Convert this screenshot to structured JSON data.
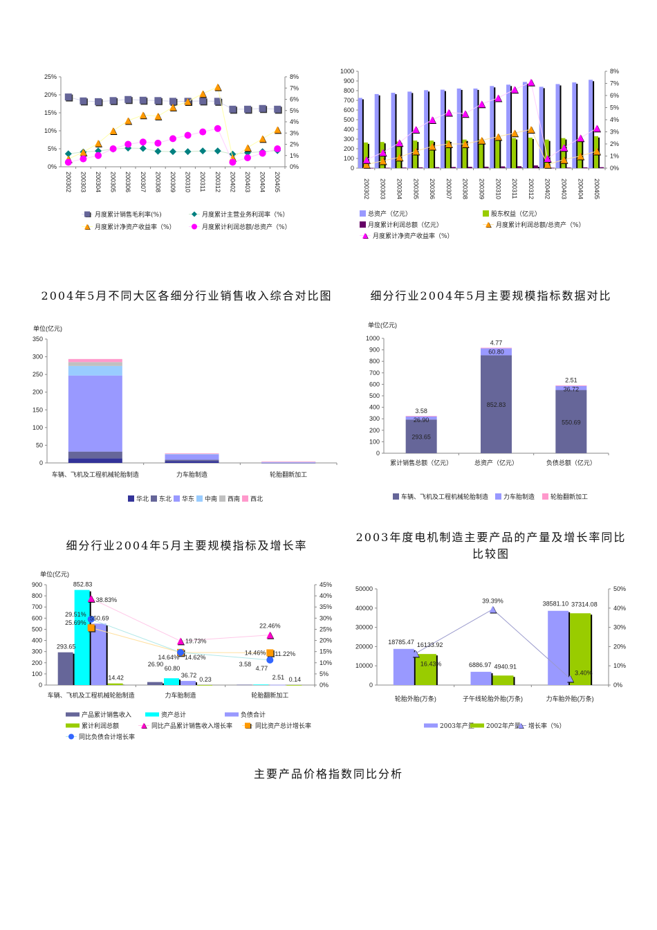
{
  "titles": {
    "t3": "2004年5月不同大区各细分行业销售收入综合对比图",
    "t4": "细分行业2004年5月主要规模指标数据对比",
    "t5": "细分行业2004年5月主要规模指标及增长率",
    "t6": "2003年度电机制造主要产品的产量及增长率同比比较图",
    "t7": "主要产品价格指数同比分析"
  },
  "chart_data": [
    {
      "type": "line",
      "categories": [
        "200302",
        "200303",
        "200304",
        "200305",
        "200306",
        "200307",
        "200308",
        "200309",
        "200310",
        "200311",
        "200312",
        "200402",
        "200403",
        "200404",
        "200405"
      ],
      "y_left": {
        "lim": [
          0,
          25
        ],
        "ticks": [
          "0%",
          "5%",
          "10%",
          "15%",
          "20%",
          "25%"
        ]
      },
      "y_right": {
        "lim": [
          0,
          8
        ],
        "ticks": [
          "0%",
          "1%",
          "2%",
          "3%",
          "4%",
          "5%",
          "6%",
          "7%",
          "8%"
        ]
      },
      "legend": "bottom",
      "series": [
        {
          "name": "月度累计销售毛利率(%)",
          "kind": "line",
          "axis": "left",
          "marker": "square",
          "color": "#666699",
          "line": "#d8d8ee",
          "values": [
            19.4,
            18.3,
            18.1,
            18.4,
            18.7,
            18.5,
            18.4,
            18.2,
            18.2,
            18.3,
            18.2,
            16.0,
            16.0,
            16.2,
            16.0
          ]
        },
        {
          "name": "月度累计主营业务利润率（%）",
          "kind": "line",
          "axis": "left",
          "marker": "diamond",
          "color": "#008080",
          "line": "#cde8cd",
          "values": [
            3.6,
            4.1,
            4.4,
            4.9,
            5.2,
            5.1,
            4.3,
            4.2,
            4.2,
            4.4,
            4.4,
            3.5,
            3.9,
            4.2,
            4.5
          ]
        },
        {
          "name": "月度累计净资产收益率（%）",
          "kind": "line",
          "axis": "right",
          "marker": "triangle",
          "color": "#ff9900",
          "line": "#ffffaa",
          "values": [
            0.7,
            1.3,
            2.1,
            3.2,
            4.1,
            4.6,
            4.5,
            5.3,
            5.8,
            6.5,
            7.1,
            0.8,
            1.7,
            2.5,
            3.3
          ]
        },
        {
          "name": "月度累计利润总额/总资产（%）",
          "kind": "line",
          "axis": "right",
          "marker": "circle",
          "color": "#ff00ff",
          "line": "#ffd0ff",
          "values": [
            0.4,
            0.7,
            1.0,
            1.6,
            2.0,
            2.2,
            2.1,
            2.5,
            2.8,
            3.1,
            3.4,
            0.4,
            0.8,
            1.2,
            1.6
          ]
        }
      ]
    },
    {
      "type": "bar",
      "categories": [
        "200302",
        "200303",
        "200304",
        "200305",
        "200306",
        "200307",
        "200308",
        "200309",
        "200310",
        "200311",
        "200312",
        "200402",
        "200403",
        "200404",
        "200405"
      ],
      "y_left": {
        "lim": [
          0,
          1000
        ],
        "ticks": [
          "0",
          "100",
          "200",
          "300",
          "400",
          "500",
          "600",
          "700",
          "800",
          "900",
          "1000"
        ]
      },
      "y_right": {
        "lim": [
          0,
          8
        ],
        "ticks": [
          "0%",
          "1%",
          "2%",
          "3%",
          "4%",
          "5%",
          "6%",
          "7%",
          "8%"
        ]
      },
      "legend": "bottom",
      "series": [
        {
          "name": "总资产（亿元）",
          "kind": "bar",
          "axis": "left",
          "color": "#9999ff",
          "values": [
            725,
            765,
            778,
            790,
            805,
            810,
            822,
            822,
            848,
            862,
            890,
            840,
            868,
            885,
            912
          ]
        },
        {
          "name": "股东权益（亿元）",
          "kind": "bar",
          "axis": "left",
          "color": "#99cc00",
          "values": [
            265,
            270,
            275,
            285,
            285,
            285,
            295,
            295,
            300,
            310,
            315,
            295,
            310,
            305,
            330
          ]
        },
        {
          "name": "月度累计利润总额（亿元）",
          "kind": "bar",
          "axis": "left",
          "color": "#660066",
          "values": [
            2,
            4,
            6,
            8,
            10,
            12,
            14,
            15,
            18,
            20,
            28,
            4,
            6,
            8,
            10
          ]
        },
        {
          "name": "月度累计利润总额/总资产（%）",
          "kind": "line",
          "axis": "right",
          "marker": "triangle",
          "color": "#ff9900",
          "line": "#ffe0a0",
          "values": [
            0.3,
            0.6,
            0.9,
            1.4,
            1.8,
            2.0,
            2.0,
            2.3,
            2.6,
            2.9,
            3.2,
            0.3,
            0.7,
            1.0,
            1.4
          ]
        },
        {
          "name": "月度累计净资产收益率（%）",
          "kind": "line",
          "axis": "right",
          "marker": "triangle",
          "color": "#ff00ff",
          "line": "#ffd0ff",
          "values": [
            0.7,
            1.3,
            2.1,
            3.2,
            4.0,
            4.6,
            4.5,
            5.3,
            5.8,
            6.5,
            7.1,
            0.8,
            1.7,
            2.5,
            3.3
          ]
        }
      ]
    },
    {
      "type": "bar",
      "stacked": true,
      "unit": "单位(亿元)",
      "categories": [
        "车辆、飞机及工程机械轮胎制造",
        "力车胎制造",
        "轮胎翻新加工"
      ],
      "y_left": {
        "lim": [
          0,
          350
        ],
        "ticks": [
          "0",
          "50",
          "100",
          "150",
          "200",
          "250",
          "300",
          "350"
        ]
      },
      "legend": "bottom",
      "series": [
        {
          "name": "华北",
          "kind": "bar",
          "axis": "left",
          "color": "#333399",
          "values": [
            13,
            5,
            0.3
          ]
        },
        {
          "name": "东北",
          "kind": "bar",
          "axis": "left",
          "color": "#666699",
          "values": [
            19,
            4,
            0.2
          ]
        },
        {
          "name": "华东",
          "kind": "bar",
          "axis": "left",
          "color": "#9999ff",
          "values": [
            215,
            15,
            1.0
          ]
        },
        {
          "name": "中南",
          "kind": "bar",
          "axis": "left",
          "color": "#99ccff",
          "values": [
            27,
            2,
            2.0
          ]
        },
        {
          "name": "西南",
          "kind": "bar",
          "axis": "left",
          "color": "#c0c0c0",
          "values": [
            11,
            0.5,
            0.05
          ]
        },
        {
          "name": "西北",
          "kind": "bar",
          "axis": "left",
          "color": "#ff99cc",
          "values": [
            8.6,
            0.4,
            0.03
          ]
        }
      ]
    },
    {
      "type": "bar",
      "stacked": true,
      "unit": "单位(亿元)",
      "categories": [
        "累计销售总额（亿元）",
        "总资产（亿元）",
        "负债总额（亿元）"
      ],
      "y_left": {
        "lim": [
          0,
          1000
        ],
        "ticks": [
          "0",
          "100",
          "200",
          "300",
          "400",
          "500",
          "600",
          "700",
          "800",
          "900",
          "1000"
        ]
      },
      "legend": "bottom",
      "series": [
        {
          "name": "车辆、飞机及工程机械轮胎制造",
          "kind": "bar",
          "axis": "left",
          "color": "#666699",
          "values": [
            293.65,
            852.83,
            550.69
          ],
          "labels": [
            "293.65",
            "852.83",
            "550.69"
          ]
        },
        {
          "name": "力车胎制造",
          "kind": "bar",
          "axis": "left",
          "color": "#9999ff",
          "values": [
            26.9,
            60.8,
            36.72
          ],
          "labels": [
            "26.90",
            "60.80",
            "36.72"
          ]
        },
        {
          "name": "轮胎翻新加工",
          "kind": "bar",
          "axis": "left",
          "color": "#ff99cc",
          "values": [
            3.58,
            4.77,
            2.51
          ],
          "labels": [
            "3.58",
            "4.77",
            "2.51"
          ]
        }
      ]
    },
    {
      "type": "bar",
      "unit": "单位(亿元)",
      "categories": [
        "车辆、飞机及工程机械轮胎制造",
        "力车胎制造",
        "轮胎翻新加工"
      ],
      "y_left": {
        "lim": [
          0,
          900
        ],
        "ticks": [
          "0",
          "100",
          "200",
          "300",
          "400",
          "500",
          "600",
          "700",
          "800",
          "900"
        ]
      },
      "y_right": {
        "lim": [
          0,
          45
        ],
        "ticks": [
          "0%",
          "5%",
          "10%",
          "15%",
          "20%",
          "25%",
          "30%",
          "35%",
          "40%",
          "45%"
        ]
      },
      "legend": "bottom",
      "series": [
        {
          "name": "产品累计销售收入",
          "kind": "bar",
          "axis": "left",
          "color": "#666699",
          "values": [
            293.65,
            26.9,
            3.58
          ],
          "labels": [
            "293.65",
            "26.90",
            "3.58"
          ]
        },
        {
          "name": "资产总计",
          "kind": "bar",
          "axis": "left",
          "color": "#00ffff",
          "values": [
            852.83,
            60.8,
            4.77
          ],
          "labels": [
            "852.83",
            "60.80",
            "4.77"
          ]
        },
        {
          "name": "负债合计",
          "kind": "bar",
          "axis": "left",
          "color": "#9999ff",
          "values": [
            550.69,
            36.72,
            2.51
          ],
          "labels": [
            "550.69",
            "36.72",
            "2.51"
          ]
        },
        {
          "name": "累计利润总额",
          "kind": "bar",
          "axis": "left",
          "color": "#99cc00",
          "values": [
            14.42,
            0.23,
            0.14
          ],
          "labels": [
            "14.42",
            "0.23",
            "0.14"
          ]
        },
        {
          "name": "同比产品累计销售收入增长率",
          "kind": "line",
          "axis": "right",
          "marker": "triangle",
          "color": "#ff00cc",
          "line": "#ffc8e8",
          "values": [
            38.83,
            19.73,
            22.46
          ],
          "labels": [
            "38.83%",
            "19.73%",
            "22.46%"
          ]
        },
        {
          "name": "同比资产总计增长率",
          "kind": "line",
          "axis": "right",
          "marker": "square",
          "color": "#ff9900",
          "line": "#ffe0a0",
          "values": [
            25.69,
            14.64,
            14.46
          ],
          "labels": [
            "25.69%",
            "14.64%",
            "14.46%"
          ]
        },
        {
          "name": "同比负债合计增长率",
          "kind": "line",
          "axis": "right",
          "marker": "circle",
          "color": "#3366ff",
          "line": "#b0e8e8",
          "values": [
            29.51,
            14.62,
            11.22
          ],
          "labels": [
            "29.51%",
            "14.62%",
            "11.22%"
          ]
        }
      ]
    },
    {
      "type": "bar",
      "categories": [
        "轮胎外胎(万条)",
        "子午线轮胎外胎(万条)",
        "力车胎外胎(万条)"
      ],
      "y_left": {
        "lim": [
          0,
          50000
        ],
        "ticks": [
          "0",
          "10000",
          "20000",
          "30000",
          "40000",
          "50000"
        ]
      },
      "y_right": {
        "lim": [
          0,
          50
        ],
        "ticks": [
          "0%",
          "10%",
          "20%",
          "30%",
          "40%",
          "50%"
        ]
      },
      "legend": "bottom",
      "series": [
        {
          "name": "2003年产量",
          "kind": "bar",
          "axis": "left",
          "color": "#9999ff",
          "values": [
            18785.47,
            6886.97,
            38581.1
          ],
          "labels": [
            "18785.47",
            "6886.97",
            "38581.10"
          ]
        },
        {
          "name": "2002年产量",
          "kind": "bar",
          "axis": "left",
          "color": "#99cc00",
          "values": [
            16133.92,
            4940.91,
            37314.08
          ],
          "labels": [
            "16133.92",
            "4940.91",
            "37314.08"
          ]
        },
        {
          "name": "增长率（%）",
          "kind": "line",
          "axis": "right",
          "marker": "triangle",
          "color": "#9999ff",
          "line": "#9999cc",
          "values": [
            16.43,
            39.39,
            3.4
          ],
          "labels": [
            "16.43%",
            "39.39%",
            "3.40%"
          ]
        }
      ]
    }
  ]
}
